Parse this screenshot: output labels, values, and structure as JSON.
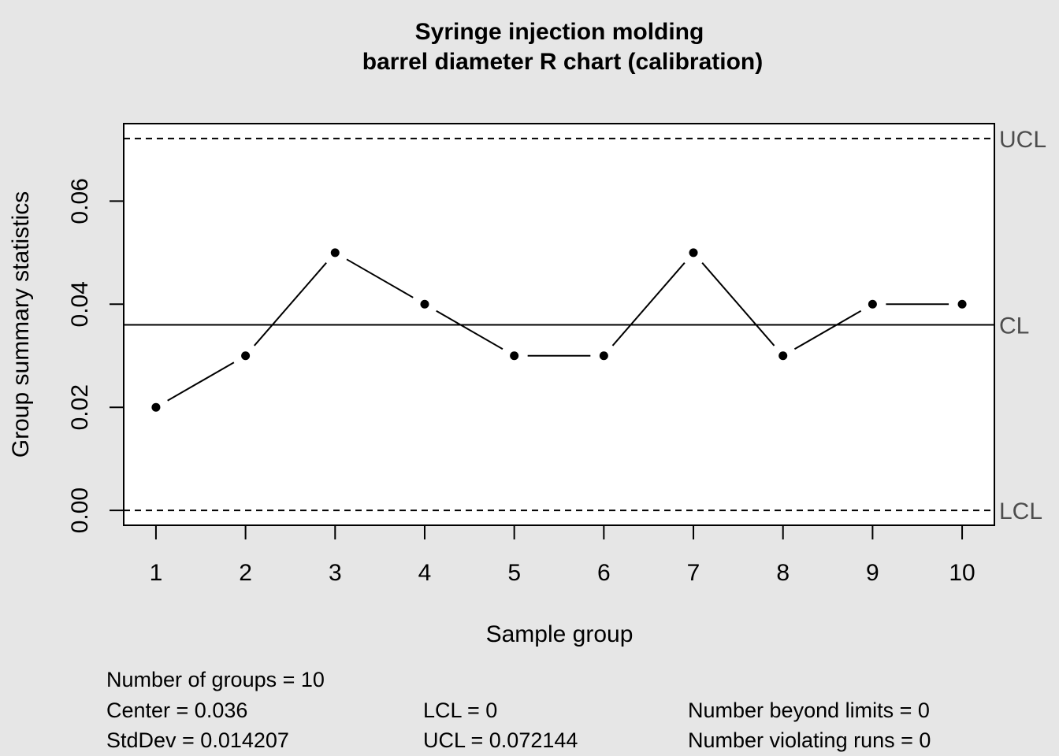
{
  "chart_data": {
    "type": "line",
    "title_line1": "Syringe injection molding",
    "title_line2": "barrel diameter R chart (calibration)",
    "xlabel": "Sample group",
    "ylabel": "Group summary statistics",
    "x": [
      1,
      2,
      3,
      4,
      5,
      6,
      7,
      8,
      9,
      10
    ],
    "x_tick_labels": [
      "1",
      "2",
      "3",
      "4",
      "5",
      "6",
      "7",
      "8",
      "9",
      "10"
    ],
    "values": [
      0.02,
      0.03,
      0.05,
      0.04,
      0.03,
      0.03,
      0.05,
      0.03,
      0.04,
      0.04
    ],
    "y_ticks": [
      0.0,
      0.02,
      0.04,
      0.06
    ],
    "y_tick_labels": [
      "0.00",
      "0.02",
      "0.04",
      "0.06"
    ],
    "xlim": [
      0.64,
      10.36
    ],
    "ylim": [
      -0.0028858,
      0.0750298
    ],
    "center_line": 0.036,
    "ucl": 0.072144,
    "lcl": 0,
    "limit_labels": {
      "ucl": "UCL",
      "cl": "CL",
      "lcl": "LCL"
    },
    "grid": false,
    "legend": "none"
  },
  "stats": {
    "groups": "Number of groups = 10",
    "center": "Center = 0.036",
    "stddev": "StdDev = 0.014207",
    "lcl": "LCL = 0",
    "ucl": "UCL = 0.072144",
    "beyond": "Number beyond limits = 0",
    "runs": "Number violating runs = 0"
  },
  "colors": {
    "background": "#e6e6e6",
    "plot_background": "#ffffff",
    "line": "#000000",
    "limit_label": "#4d4d4d"
  }
}
